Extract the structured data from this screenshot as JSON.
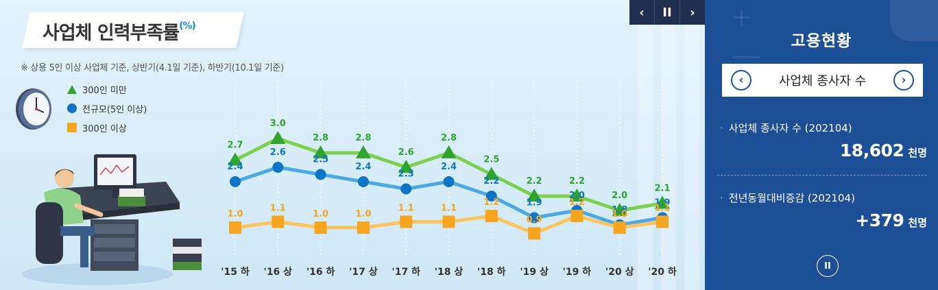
{
  "chart_data": {
    "type": "line",
    "title": "사업체 인력부족률",
    "title_unit": "(%)",
    "subtitle": "※ 상용 5인 이상 사업체 기준, 상반기(4.1일 기준), 하반기(10.1일 기준)",
    "categories": [
      "'15 하",
      "'16 상",
      "'16 하",
      "'17 상",
      "'17 하",
      "'18 상",
      "'18 하",
      "'19 상",
      "'19 하",
      "'20 상",
      "'20 하"
    ],
    "series": [
      {
        "name": "300인 미만",
        "marker": "triangle",
        "color": "#2fa52f",
        "line_color": "#7bd14e",
        "values": [
          2.7,
          3.0,
          2.8,
          2.8,
          2.6,
          2.8,
          2.5,
          2.2,
          2.2,
          2.0,
          2.1
        ]
      },
      {
        "name": "전규모(5인 이상)",
        "marker": "circle",
        "color": "#0d75c5",
        "line_color": "#4aa8e6",
        "values": [
          2.4,
          2.6,
          2.5,
          2.4,
          2.3,
          2.4,
          2.2,
          1.9,
          2.0,
          1.8,
          1.9
        ]
      },
      {
        "name": "300인 이상",
        "marker": "square",
        "color": "#f7a51e",
        "line_color": "#fbc45e",
        "values": [
          1.0,
          1.1,
          1.0,
          1.0,
          1.1,
          1.1,
          1.2,
          0.9,
          1.2,
          1.0,
          1.1
        ]
      }
    ],
    "legend_position": "left",
    "grid": false
  },
  "nav": {
    "prev": "‹",
    "pause": "II",
    "next": "›"
  },
  "panel": {
    "title": "고용현황",
    "selector": {
      "label": "사업체 종사자 수",
      "prev": "‹",
      "next": "›"
    },
    "stats": [
      {
        "label": "사업체 종사자 수 (202104)",
        "value": "18,602",
        "unit": "천명"
      },
      {
        "label": "전년동월대비증감 (202104)",
        "value": "+379",
        "unit": "천명"
      }
    ],
    "pause": "II"
  }
}
